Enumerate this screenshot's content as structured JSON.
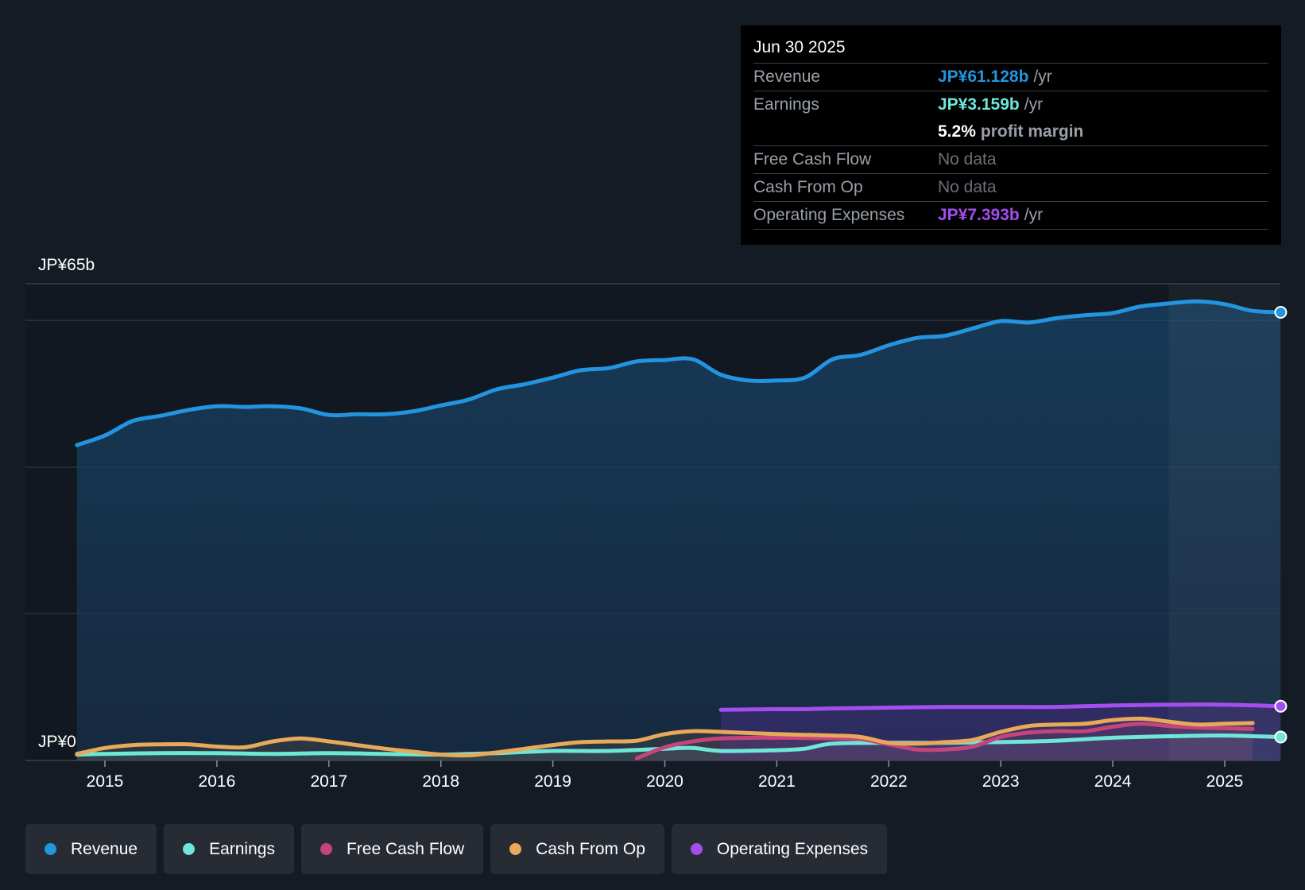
{
  "tooltip": {
    "date": "Jun 30 2025",
    "rows": [
      {
        "label": "Revenue",
        "value": "JP¥61.128b",
        "unit": "/yr",
        "color": "#2394df"
      },
      {
        "label": "Earnings",
        "value": "JP¥3.159b",
        "unit": "/yr",
        "color": "#6ee7d8"
      },
      {
        "label": "",
        "value": "5.2%",
        "unit": "profit margin",
        "color": "#ffffff"
      },
      {
        "label": "Free Cash Flow",
        "nodata": "No data"
      },
      {
        "label": "Cash From Op",
        "nodata": "No data"
      },
      {
        "label": "Operating Expenses",
        "value": "JP¥7.393b",
        "unit": "/yr",
        "color": "#a54ef0"
      }
    ]
  },
  "legend": [
    {
      "label": "Revenue",
      "color": "#2394df"
    },
    {
      "label": "Earnings",
      "color": "#6ee7d8"
    },
    {
      "label": "Free Cash Flow",
      "color": "#c4447c"
    },
    {
      "label": "Cash From Op",
      "color": "#e8a95a"
    },
    {
      "label": "Operating Expenses",
      "color": "#a54ef0"
    }
  ],
  "chart_data": {
    "type": "line",
    "title": "",
    "xlabel": "",
    "ylabel": "",
    "ylim": [
      0,
      65
    ],
    "y_labels": [
      "JP¥65b",
      "JP¥0"
    ],
    "x_ticks": [
      "2015",
      "2016",
      "2017",
      "2018",
      "2019",
      "2020",
      "2021",
      "2022",
      "2023",
      "2024",
      "2025"
    ],
    "x_tick_values": [
      2015,
      2016,
      2017,
      2018,
      2019,
      2020,
      2021,
      2022,
      2023,
      2024,
      2025
    ],
    "xlim": [
      2014.3,
      2025.5
    ],
    "past_year_start": 2024.5,
    "series": [
      {
        "name": "Revenue",
        "color": "#2394df",
        "x": [
          2014.75,
          2015.0,
          2015.25,
          2015.5,
          2015.75,
          2016.0,
          2016.25,
          2016.5,
          2016.75,
          2017.0,
          2017.25,
          2017.5,
          2017.75,
          2018.0,
          2018.25,
          2018.5,
          2018.75,
          2019.0,
          2019.25,
          2019.5,
          2019.75,
          2020.0,
          2020.25,
          2020.5,
          2020.75,
          2021.0,
          2021.25,
          2021.5,
          2021.75,
          2022.0,
          2022.25,
          2022.5,
          2022.75,
          2023.0,
          2023.25,
          2023.5,
          2023.75,
          2024.0,
          2024.25,
          2024.5,
          2024.75,
          2025.0,
          2025.25,
          2025.5
        ],
        "values": [
          43.0,
          44.3,
          46.3,
          47.0,
          47.8,
          48.3,
          48.2,
          48.3,
          48.0,
          47.1,
          47.2,
          47.2,
          47.6,
          48.4,
          49.2,
          50.6,
          51.3,
          52.2,
          53.2,
          53.5,
          54.4,
          54.6,
          54.7,
          52.6,
          51.8,
          51.8,
          52.2,
          54.7,
          55.3,
          56.6,
          57.6,
          57.9,
          58.9,
          59.9,
          59.7,
          60.3,
          60.7,
          61.0,
          61.9,
          62.3,
          62.6,
          62.2,
          61.3,
          61.1
        ]
      },
      {
        "name": "Earnings",
        "color": "#6ee7d8",
        "x": [
          2014.75,
          2015.0,
          2015.5,
          2016.0,
          2016.5,
          2017.0,
          2017.5,
          2018.0,
          2018.25,
          2018.5,
          2019.0,
          2019.5,
          2020.0,
          2020.25,
          2020.5,
          2021.0,
          2021.25,
          2021.5,
          2022.0,
          2022.5,
          2023.0,
          2023.5,
          2024.0,
          2024.5,
          2025.0,
          2025.5
        ],
        "values": [
          0.8,
          0.9,
          1.0,
          1.0,
          0.9,
          1.0,
          0.9,
          0.8,
          0.9,
          1.0,
          1.3,
          1.3,
          1.6,
          1.7,
          1.3,
          1.4,
          1.6,
          2.3,
          2.4,
          2.4,
          2.5,
          2.7,
          3.1,
          3.3,
          3.4,
          3.2
        ]
      },
      {
        "name": "Free Cash Flow",
        "color": "#c4447c",
        "x": [
          2019.75,
          2020.0,
          2020.25,
          2020.5,
          2021.0,
          2021.5,
          2021.75,
          2022.0,
          2022.25,
          2022.5,
          2022.75,
          2023.0,
          2023.25,
          2023.5,
          2023.75,
          2024.0,
          2024.25,
          2024.5,
          2024.75,
          2025.0,
          2025.25
        ],
        "values": [
          0.3,
          1.8,
          2.6,
          3.0,
          3.1,
          3.0,
          2.9,
          2.2,
          1.5,
          1.5,
          1.9,
          3.2,
          3.8,
          4.0,
          4.0,
          4.6,
          5.0,
          4.7,
          4.5,
          4.4,
          4.3
        ]
      },
      {
        "name": "Cash From Op",
        "color": "#e8a95a",
        "x": [
          2014.75,
          2015.0,
          2015.25,
          2015.5,
          2015.75,
          2016.0,
          2016.25,
          2016.5,
          2016.75,
          2017.0,
          2017.25,
          2017.5,
          2017.75,
          2018.0,
          2018.25,
          2018.5,
          2018.75,
          2019.0,
          2019.25,
          2019.5,
          2019.75,
          2020.0,
          2020.25,
          2020.5,
          2021.0,
          2021.5,
          2021.75,
          2022.0,
          2022.25,
          2022.5,
          2022.75,
          2023.0,
          2023.25,
          2023.5,
          2023.75,
          2024.0,
          2024.25,
          2024.5,
          2024.75,
          2025.0,
          2025.25
        ],
        "values": [
          0.9,
          1.7,
          2.1,
          2.2,
          2.2,
          1.9,
          1.8,
          2.6,
          3.0,
          2.6,
          2.1,
          1.6,
          1.2,
          0.8,
          0.7,
          1.1,
          1.6,
          2.1,
          2.5,
          2.6,
          2.7,
          3.6,
          4.0,
          3.9,
          3.6,
          3.4,
          3.2,
          2.4,
          2.3,
          2.5,
          2.8,
          3.9,
          4.7,
          4.9,
          5.0,
          5.5,
          5.7,
          5.3,
          4.9,
          5.0,
          5.1
        ]
      },
      {
        "name": "Operating Expenses",
        "color": "#a54ef0",
        "x": [
          2020.5,
          2021.0,
          2021.25,
          2021.5,
          2022.0,
          2022.5,
          2023.0,
          2023.5,
          2024.0,
          2024.5,
          2025.0,
          2025.5
        ],
        "values": [
          6.9,
          7.0,
          7.0,
          7.1,
          7.2,
          7.3,
          7.3,
          7.3,
          7.5,
          7.6,
          7.6,
          7.4
        ]
      }
    ]
  }
}
